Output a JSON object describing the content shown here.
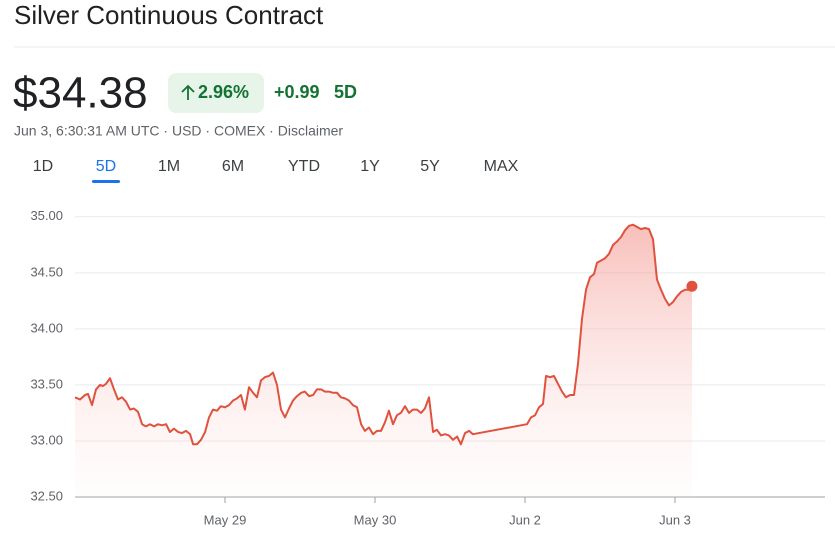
{
  "header": {
    "title": "Silver Continuous Contract",
    "price": "$34.38",
    "change_percent": "2.96%",
    "change": "+0.99",
    "change_period": "5D",
    "meta": "Jun 3, 6:30:31 AM UTC · USD · COMEX · Disclaimer"
  },
  "tabs": {
    "items": [
      "1D",
      "5D",
      "1M",
      "6M",
      "YTD",
      "1Y",
      "5Y",
      "MAX"
    ],
    "active": 1
  },
  "chart_data": {
    "type": "line",
    "color": "#e0523e",
    "grid": true,
    "x": [
      0,
      0.033,
      0.067,
      0.087,
      0.113,
      0.14,
      0.167,
      0.187,
      0.207,
      0.233,
      0.26,
      0.287,
      0.313,
      0.34,
      0.367,
      0.393,
      0.42,
      0.447,
      0.473,
      0.5,
      0.527,
      0.553,
      0.58,
      0.607,
      0.633,
      0.66,
      0.687,
      0.713,
      0.74,
      0.767,
      0.787,
      0.813,
      0.84,
      0.867,
      0.893,
      0.92,
      0.947,
      0.973,
      1,
      1.027,
      1.053,
      1.08,
      1.107,
      1.133,
      1.16,
      1.187,
      1.213,
      1.24,
      1.267,
      1.293,
      1.32,
      1.347,
      1.373,
      1.4,
      1.427,
      1.453,
      1.48,
      1.507,
      1.533,
      1.56,
      1.587,
      1.613,
      1.64,
      1.667,
      1.693,
      1.72,
      1.747,
      1.773,
      1.8,
      1.827,
      1.853,
      1.88,
      1.907,
      1.933,
      1.96,
      1.987,
      2.013,
      2.04,
      2.067,
      2.093,
      2.12,
      2.147,
      2.173,
      2.2,
      2.227,
      2.253,
      2.28,
      2.307,
      2.333,
      2.36,
      2.387,
      2.413,
      2.44,
      2.467,
      2.493,
      2.52,
      2.547,
      2.573,
      2.6,
      2.627,
      2.653,
      3.013,
      3.04,
      3.067,
      3.093,
      3.12,
      3.14,
      3.167,
      3.193,
      3.22,
      3.247,
      3.273,
      3.3,
      3.327,
      3.353,
      3.38,
      3.407,
      3.433,
      3.46,
      3.48,
      3.507,
      3.533,
      3.56,
      3.587,
      3.613,
      3.64,
      3.667,
      3.693,
      3.72,
      3.747,
      3.773,
      3.8,
      3.827,
      3.853,
      3.88,
      3.907,
      3.933,
      3.96,
      3.987,
      4.013,
      4.04,
      4.067,
      4.093,
      4.113
    ],
    "values": [
      33.39,
      33.37,
      33.41,
      33.42,
      33.32,
      33.46,
      33.5,
      33.49,
      33.51,
      33.56,
      33.46,
      33.37,
      33.39,
      33.35,
      33.28,
      33.29,
      33.26,
      33.15,
      33.13,
      33.15,
      33.13,
      33.15,
      33.14,
      33.15,
      33.08,
      33.11,
      33.08,
      33.07,
      33.09,
      33.06,
      32.97,
      32.97,
      33.01,
      33.08,
      33.21,
      33.28,
      33.27,
      33.31,
      33.3,
      33.32,
      33.36,
      33.38,
      33.41,
      33.28,
      33.48,
      33.43,
      33.39,
      33.54,
      33.57,
      33.58,
      33.61,
      33.5,
      33.28,
      33.21,
      33.29,
      33.36,
      33.4,
      33.43,
      33.44,
      33.4,
      33.41,
      33.46,
      33.46,
      33.44,
      33.44,
      33.43,
      33.43,
      33.39,
      33.38,
      33.36,
      33.32,
      33.3,
      33.15,
      33.09,
      33.12,
      33.06,
      33.09,
      33.09,
      33.17,
      33.27,
      33.15,
      33.23,
      33.25,
      33.31,
      33.25,
      33.28,
      33.28,
      33.25,
      33.29,
      33.39,
      33.08,
      33.1,
      33.05,
      33.06,
      33.05,
      33.01,
      33.04,
      32.97,
      33.07,
      33.09,
      33.06,
      33.15,
      33.21,
      33.23,
      33.3,
      33.33,
      33.58,
      33.57,
      33.58,
      33.51,
      33.44,
      33.39,
      33.41,
      33.41,
      33.69,
      34.09,
      34.35,
      34.46,
      34.49,
      34.59,
      34.61,
      34.63,
      34.67,
      34.75,
      34.78,
      34.82,
      34.88,
      34.92,
      34.93,
      34.91,
      34.89,
      34.9,
      34.89,
      34.8,
      34.44,
      34.35,
      34.27,
      34.21,
      34.24,
      34.29,
      34.33,
      34.35,
      34.35,
      34.38
    ],
    "xlim": [
      0,
      5
    ],
    "xticks": [
      {
        "value": 1,
        "label": "May 29"
      },
      {
        "value": 2,
        "label": "May 30"
      },
      {
        "value": 3,
        "label": "Jun 2"
      },
      {
        "value": 4,
        "label": "Jun 3"
      }
    ],
    "ylim": [
      32.5,
      35.15
    ],
    "yticks": [
      {
        "value": 32.5,
        "label": "32.50"
      },
      {
        "value": 33,
        "label": "33.00"
      },
      {
        "value": 33.5,
        "label": "33.50"
      },
      {
        "value": 34,
        "label": "34.00"
      },
      {
        "value": 34.5,
        "label": "34.50"
      },
      {
        "value": 35,
        "label": "35.00"
      }
    ]
  }
}
